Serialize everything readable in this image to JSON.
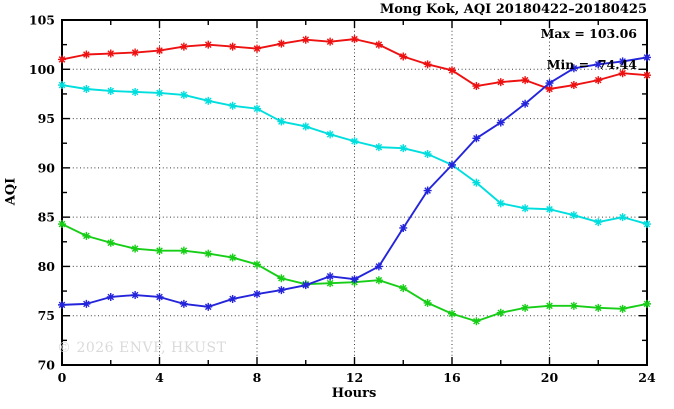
{
  "title": "Mong Kok, AQI 20180422–20180425",
  "annotation": {
    "max_label": "Max = 103.06",
    "min_label": "Min =  74.44"
  },
  "watermark": "© 2026 ENVF, HKUST",
  "chart_data": {
    "type": "line",
    "title": "Mong Kok, AQI 20180422–20180425",
    "xlabel": "Hours",
    "ylabel": "AQI",
    "xlim": [
      0,
      24
    ],
    "ylim": [
      70,
      105
    ],
    "xticks": [
      0,
      4,
      8,
      12,
      16,
      20,
      24
    ],
    "xminorticks": [
      2,
      6,
      10,
      14,
      18,
      22
    ],
    "yticks": [
      70,
      75,
      80,
      85,
      90,
      95,
      100,
      105
    ],
    "yminorticks": [
      72.5,
      77.5,
      82.5,
      87.5,
      92.5,
      97.5,
      102.5
    ],
    "grid": true,
    "legend": "none",
    "marker": "asterisk",
    "stats": {
      "max": 103.06,
      "min": 74.44
    },
    "x": [
      0,
      1,
      2,
      3,
      4,
      5,
      6,
      7,
      8,
      9,
      10,
      11,
      12,
      13,
      14,
      15,
      16,
      17,
      18,
      19,
      20,
      21,
      22,
      23,
      24
    ],
    "series": [
      {
        "name": "series-red",
        "color": "#ee1111",
        "values": [
          101.0,
          101.5,
          101.6,
          101.7,
          101.9,
          102.3,
          102.5,
          102.3,
          102.1,
          102.6,
          103.0,
          102.8,
          103.06,
          102.5,
          101.3,
          100.5,
          99.9,
          98.3,
          98.7,
          98.9,
          98.0,
          98.4,
          98.9,
          99.6,
          99.4
        ]
      },
      {
        "name": "series-cyan",
        "color": "#00dede",
        "values": [
          98.4,
          98.0,
          97.8,
          97.7,
          97.6,
          97.4,
          96.8,
          96.3,
          96.0,
          94.7,
          94.2,
          93.4,
          92.7,
          92.1,
          92.0,
          91.4,
          90.3,
          88.5,
          86.4,
          85.9,
          85.8,
          85.2,
          84.5,
          85.0,
          84.3
        ]
      },
      {
        "name": "series-green",
        "color": "#17ce17",
        "values": [
          84.3,
          83.1,
          82.4,
          81.8,
          81.6,
          81.6,
          81.3,
          80.9,
          80.2,
          78.8,
          78.2,
          78.3,
          78.4,
          78.6,
          77.8,
          76.3,
          75.2,
          74.44,
          75.3,
          75.8,
          76.0,
          76.0,
          75.8,
          75.7,
          76.2
        ]
      },
      {
        "name": "series-blue",
        "color": "#2424db",
        "values": [
          76.1,
          76.2,
          76.9,
          77.1,
          76.9,
          76.2,
          75.9,
          76.7,
          77.2,
          77.6,
          78.1,
          79.0,
          78.7,
          80.0,
          83.9,
          87.7,
          90.3,
          93.0,
          94.6,
          96.5,
          98.6,
          100.1,
          100.5,
          100.8,
          101.2
        ]
      }
    ]
  }
}
